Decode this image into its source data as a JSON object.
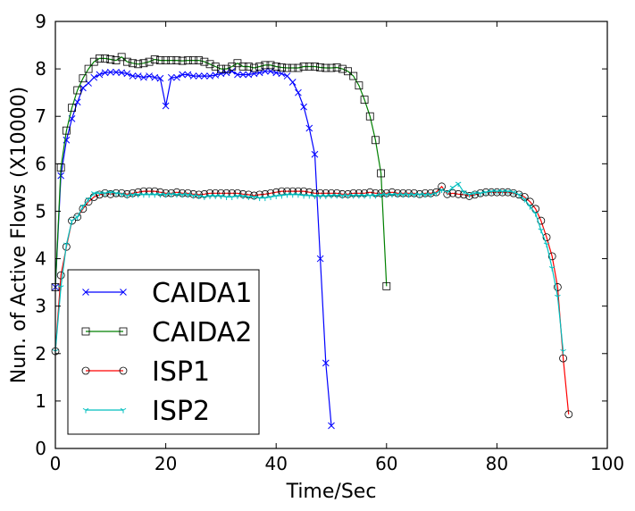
{
  "chart_data": {
    "type": "line",
    "title": "",
    "xlabel": "Time/Sec",
    "ylabel": "Nun. of Active Flows (X10000)",
    "xlim": [
      0,
      100
    ],
    "ylim": [
      0,
      9
    ],
    "xticks": [
      0,
      20,
      40,
      60,
      80,
      100
    ],
    "yticks": [
      0,
      1,
      2,
      3,
      4,
      5,
      6,
      7,
      8,
      9
    ],
    "legend_position": "bottom-left",
    "grid": false,
    "series": [
      {
        "name": "CAIDA1",
        "color": "#0000ff",
        "marker": "x",
        "x": [
          0,
          1,
          2,
          3,
          4,
          5,
          6,
          7,
          8,
          9,
          10,
          11,
          12,
          13,
          14,
          15,
          16,
          17,
          18,
          19,
          20,
          21,
          22,
          23,
          24,
          25,
          26,
          27,
          28,
          29,
          30,
          31,
          32,
          33,
          34,
          35,
          36,
          37,
          38,
          39,
          40,
          41,
          42,
          43,
          44,
          45,
          46,
          47,
          48,
          49,
          50
        ],
        "y": [
          3.4,
          5.75,
          6.5,
          6.95,
          7.3,
          7.6,
          7.7,
          7.82,
          7.88,
          7.92,
          7.93,
          7.93,
          7.92,
          7.9,
          7.85,
          7.85,
          7.82,
          7.85,
          7.82,
          7.8,
          7.22,
          7.82,
          7.82,
          7.88,
          7.88,
          7.85,
          7.85,
          7.85,
          7.85,
          7.87,
          7.9,
          7.92,
          7.95,
          7.88,
          7.88,
          7.88,
          7.9,
          7.92,
          7.95,
          7.95,
          7.92,
          7.9,
          7.85,
          7.72,
          7.5,
          7.2,
          6.75,
          6.2,
          4.0,
          1.8,
          0.48
        ]
      },
      {
        "name": "CAIDA2",
        "color": "#008000",
        "marker": "square",
        "x": [
          0,
          1,
          2,
          3,
          4,
          5,
          6,
          7,
          8,
          9,
          10,
          11,
          12,
          13,
          14,
          15,
          16,
          17,
          18,
          19,
          20,
          21,
          22,
          23,
          24,
          25,
          26,
          27,
          28,
          29,
          30,
          31,
          32,
          33,
          34,
          35,
          36,
          37,
          38,
          39,
          40,
          41,
          42,
          43,
          44,
          45,
          46,
          47,
          48,
          49,
          50,
          51,
          52,
          53,
          54,
          55,
          56,
          57,
          58,
          59,
          60
        ],
        "y": [
          3.4,
          5.92,
          6.7,
          7.18,
          7.55,
          7.8,
          8.0,
          8.15,
          8.22,
          8.22,
          8.2,
          8.18,
          8.25,
          8.15,
          8.12,
          8.1,
          8.12,
          8.15,
          8.2,
          8.18,
          8.18,
          8.18,
          8.18,
          8.17,
          8.18,
          8.18,
          8.18,
          8.15,
          8.1,
          8.05,
          8.0,
          8.0,
          8.05,
          8.12,
          8.05,
          8.05,
          8.02,
          8.05,
          8.08,
          8.08,
          8.05,
          8.03,
          8.02,
          8.02,
          8.02,
          8.05,
          8.05,
          8.05,
          8.03,
          8.02,
          8.02,
          8.03,
          8.0,
          7.95,
          7.85,
          7.65,
          7.35,
          7.0,
          6.5,
          5.8,
          3.42
        ]
      },
      {
        "name": "ISP1",
        "color": "#ff0000",
        "marker": "circle",
        "x": [
          0,
          1,
          2,
          3,
          4,
          5,
          6,
          7,
          8,
          9,
          10,
          11,
          12,
          13,
          14,
          15,
          16,
          17,
          18,
          19,
          20,
          21,
          22,
          23,
          24,
          25,
          26,
          27,
          28,
          29,
          30,
          31,
          32,
          33,
          34,
          35,
          36,
          37,
          38,
          39,
          40,
          41,
          42,
          43,
          44,
          45,
          46,
          47,
          48,
          49,
          50,
          51,
          52,
          53,
          54,
          55,
          56,
          57,
          58,
          59,
          60,
          61,
          62,
          63,
          64,
          65,
          66,
          67,
          68,
          69,
          70,
          71,
          72,
          73,
          74,
          75,
          76,
          77,
          78,
          79,
          80,
          81,
          82,
          83,
          84,
          85,
          86,
          87,
          88,
          89,
          90,
          91,
          92,
          93
        ],
        "y": [
          2.05,
          3.65,
          4.25,
          4.8,
          4.88,
          5.05,
          5.2,
          5.3,
          5.35,
          5.38,
          5.36,
          5.38,
          5.38,
          5.36,
          5.38,
          5.4,
          5.42,
          5.42,
          5.42,
          5.4,
          5.38,
          5.38,
          5.4,
          5.38,
          5.38,
          5.36,
          5.35,
          5.36,
          5.38,
          5.38,
          5.38,
          5.38,
          5.38,
          5.38,
          5.36,
          5.35,
          5.33,
          5.35,
          5.36,
          5.38,
          5.4,
          5.42,
          5.42,
          5.42,
          5.42,
          5.42,
          5.4,
          5.38,
          5.38,
          5.38,
          5.38,
          5.38,
          5.36,
          5.36,
          5.38,
          5.38,
          5.38,
          5.4,
          5.38,
          5.38,
          5.38,
          5.4,
          5.38,
          5.38,
          5.38,
          5.38,
          5.36,
          5.38,
          5.38,
          5.4,
          5.52,
          5.36,
          5.38,
          5.36,
          5.35,
          5.32,
          5.35,
          5.38,
          5.4,
          5.4,
          5.4,
          5.4,
          5.4,
          5.38,
          5.35,
          5.3,
          5.2,
          5.05,
          4.8,
          4.45,
          4.05,
          3.4,
          1.9,
          0.72
        ]
      },
      {
        "name": "ISP2",
        "color": "#00bfbf",
        "marker": "tri",
        "x": [
          0,
          1,
          2,
          3,
          4,
          5,
          6,
          7,
          8,
          9,
          10,
          11,
          12,
          13,
          14,
          15,
          16,
          17,
          18,
          19,
          20,
          21,
          22,
          23,
          24,
          25,
          26,
          27,
          28,
          29,
          30,
          31,
          32,
          33,
          34,
          35,
          36,
          37,
          38,
          39,
          40,
          41,
          42,
          43,
          44,
          45,
          46,
          47,
          48,
          49,
          50,
          51,
          52,
          53,
          54,
          55,
          56,
          57,
          58,
          59,
          60,
          61,
          62,
          63,
          64,
          65,
          66,
          67,
          68,
          69,
          70,
          71,
          72,
          73,
          74,
          75,
          76,
          77,
          78,
          79,
          80,
          81,
          82,
          83,
          84,
          85,
          86,
          87,
          88,
          89,
          90,
          91,
          92
        ],
        "y": [
          2.05,
          3.4,
          4.3,
          4.8,
          4.88,
          5.1,
          5.25,
          5.38,
          5.38,
          5.38,
          5.4,
          5.38,
          5.36,
          5.33,
          5.35,
          5.35,
          5.35,
          5.35,
          5.35,
          5.35,
          5.35,
          5.36,
          5.35,
          5.35,
          5.35,
          5.33,
          5.32,
          5.3,
          5.32,
          5.32,
          5.32,
          5.3,
          5.3,
          5.32,
          5.32,
          5.3,
          5.3,
          5.28,
          5.28,
          5.3,
          5.32,
          5.33,
          5.35,
          5.35,
          5.35,
          5.33,
          5.33,
          5.32,
          5.32,
          5.32,
          5.33,
          5.33,
          5.33,
          5.33,
          5.33,
          5.33,
          5.33,
          5.33,
          5.33,
          5.35,
          5.35,
          5.35,
          5.35,
          5.35,
          5.35,
          5.35,
          5.35,
          5.35,
          5.35,
          5.38,
          5.45,
          5.4,
          5.5,
          5.58,
          5.4,
          5.35,
          5.38,
          5.38,
          5.4,
          5.42,
          5.42,
          5.42,
          5.42,
          5.4,
          5.35,
          5.25,
          5.1,
          4.95,
          4.6,
          4.3,
          3.8,
          3.2,
          2.05
        ]
      }
    ]
  }
}
